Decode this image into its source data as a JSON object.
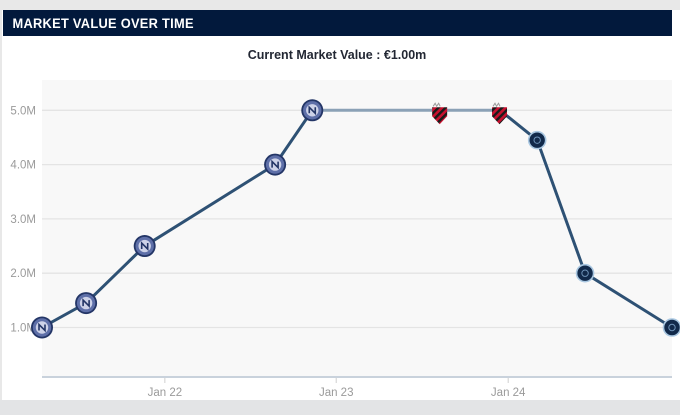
{
  "header": {
    "title": "MARKET VALUE OVER TIME"
  },
  "subtitle": "Current Market Value : €1.00m",
  "chart_data": {
    "type": "line",
    "title": "MARKET VALUE OVER TIME",
    "subtitle": "Current Market Value : €1.00m",
    "xlabel": "",
    "ylabel": "",
    "ylim": [
      0.1,
      5.55
    ],
    "grid": "horizontal",
    "legend": "none",
    "yticks": [
      {
        "label": "1.0M",
        "value": 1.0
      },
      {
        "label": "2.0M",
        "value": 2.0
      },
      {
        "label": "3.0M",
        "value": 3.0
      },
      {
        "label": "4.0M",
        "value": 4.0
      },
      {
        "label": "5.0M",
        "value": 5.0
      }
    ],
    "xticks": [
      {
        "label": "Jan 22",
        "xf": 0.195
      },
      {
        "label": "Jan 23",
        "xf": 0.467
      },
      {
        "label": "Jan 24",
        "xf": 0.74
      }
    ],
    "series": [
      {
        "name": "Market Value (€)",
        "points": [
          {
            "xf": 0.0,
            "value": 1.0,
            "marker": "club-badge-blue"
          },
          {
            "xf": 0.07,
            "value": 1.45,
            "marker": "club-badge-blue"
          },
          {
            "xf": 0.163,
            "value": 2.5,
            "marker": "club-badge-blue"
          },
          {
            "xf": 0.37,
            "value": 4.0,
            "marker": "club-badge-blue"
          },
          {
            "xf": 0.429,
            "value": 5.0,
            "marker": "club-badge-blue"
          },
          {
            "xf": 0.632,
            "value": 5.0,
            "marker": "club-shield-redblack"
          },
          {
            "xf": 0.727,
            "value": 5.0,
            "marker": "club-shield-redblack"
          },
          {
            "xf": 0.786,
            "value": 4.45,
            "marker": "club-badge-navy"
          },
          {
            "xf": 0.862,
            "value": 2.0,
            "marker": "club-badge-navy"
          },
          {
            "xf": 1.0,
            "value": 1.0,
            "marker": "club-badge-navy"
          }
        ]
      }
    ],
    "light_segment_start_indices": [
      4,
      5
    ],
    "colors": {
      "header_bg": "#02193c",
      "header_text": "#ffffff",
      "line": "#2e5174",
      "line_light": "#8ba1b6",
      "grid": "#e4e4e4",
      "axis": "#c9d2dc",
      "plot_bg": "#f8f8f8",
      "tick_label": "#9a9a9a",
      "badge_blue_outer": "#233566",
      "badge_blue_ring": "#5e6fa8",
      "badge_blue_inner": "#cdd2e8",
      "badge_navy_fill": "#11294a",
      "badge_navy_ring": "#a9c7e1",
      "shield_red": "#c8102e",
      "shield_black": "#1a1a1a"
    }
  }
}
